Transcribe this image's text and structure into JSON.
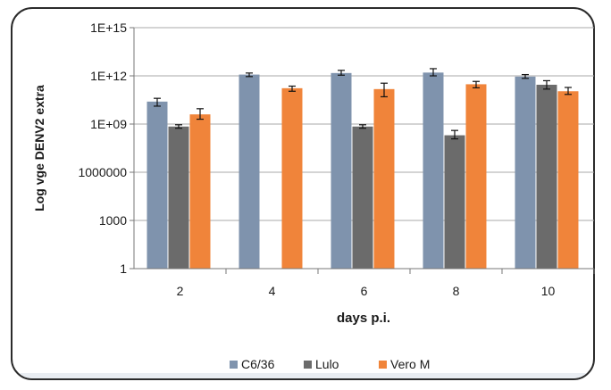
{
  "chart_data": {
    "type": "bar",
    "title": "",
    "xlabel": "days p.i.",
    "ylabel": "Log vge DENV2 extra",
    "y_scale": "log",
    "ylim": [
      1,
      1000000000000000.0
    ],
    "y_ticks": [
      1,
      1000,
      1000000,
      1000000000,
      1000000000000,
      1000000000000000
    ],
    "y_tick_labels": [
      "1",
      "1000",
      "1000000",
      "1E+09",
      "1E+12",
      "1E+15"
    ],
    "categories": [
      "2",
      "4",
      "6",
      "8",
      "10"
    ],
    "series": [
      {
        "name": "C6/36",
        "color": "#7f93ad",
        "values": [
          25000000000.0,
          1200000000000.0,
          1500000000000.0,
          1600000000000.0,
          900000000000.0
        ],
        "error_low": [
          13000000000.0,
          900000000000.0,
          1100000000000.0,
          1000000000000.0,
          700000000000.0
        ],
        "error_high": [
          40000000000.0,
          1500000000000.0,
          2200000000000.0,
          2800000000000.0,
          1200000000000.0
        ]
      },
      {
        "name": "Lulo",
        "color": "#6b6b6b",
        "values": [
          700000000.0,
          null,
          700000000.0,
          200000000.0,
          280000000000.0
        ],
        "error_low": [
          550000000.0,
          null,
          550000000.0,
          120000000.0,
          150000000000.0
        ],
        "error_high": [
          900000000.0,
          null,
          900000000.0,
          400000000.0,
          500000000000.0
        ]
      },
      {
        "name": "Vero M",
        "color": "#f0843a",
        "values": [
          4000000000.0,
          170000000000.0,
          150000000000.0,
          300000000000.0,
          110000000000.0
        ],
        "error_low": [
          2000000000.0,
          110000000000.0,
          50000000000.0,
          180000000000.0,
          70000000000.0
        ],
        "error_high": [
          9000000000.0,
          230000000000.0,
          350000000000.0,
          450000000000.0,
          190000000000.0
        ]
      }
    ],
    "grid": true,
    "legend_position": "bottom-center"
  }
}
